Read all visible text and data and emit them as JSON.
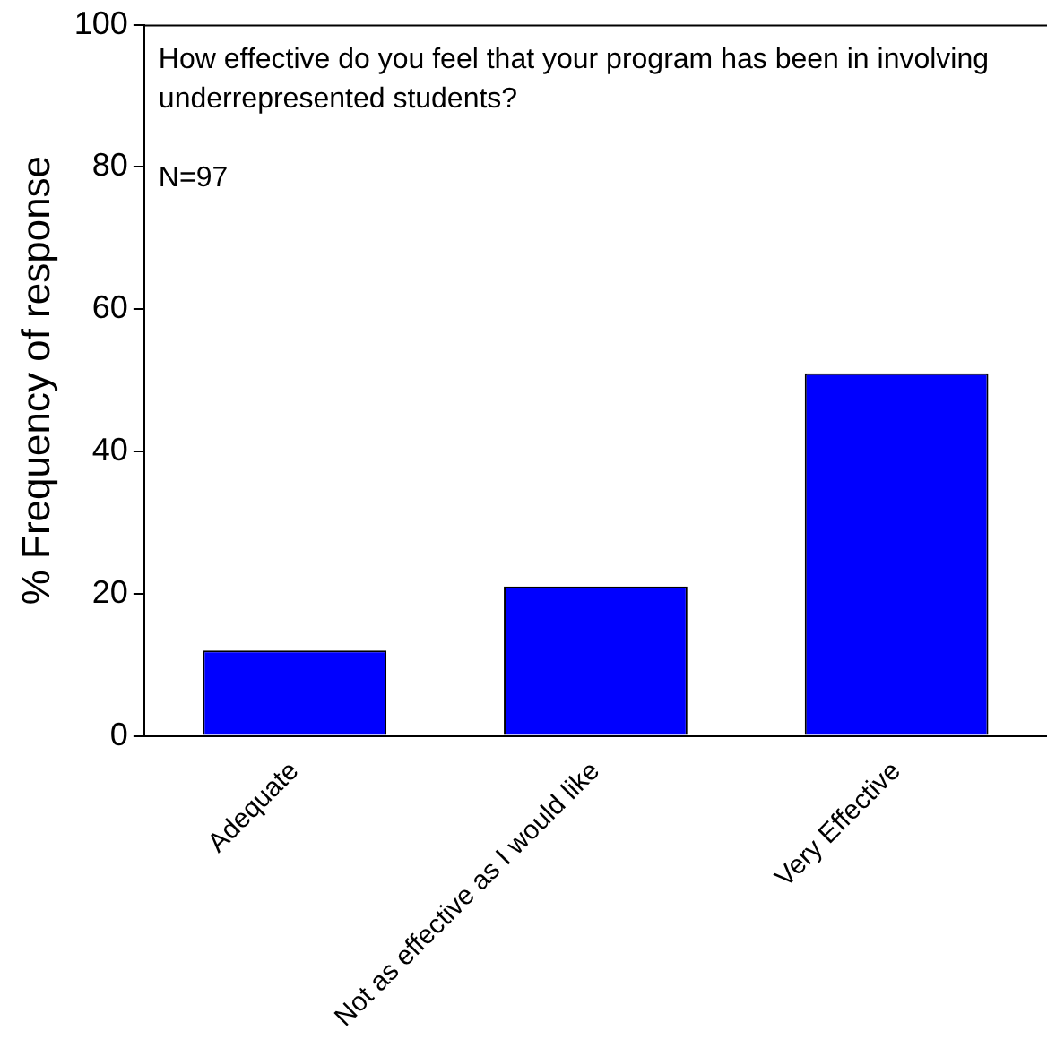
{
  "chart_data": {
    "type": "bar",
    "ylabel": "% Frequency of response",
    "categories": [
      "Adequate",
      "Not as effective as I would like",
      "Very Effective"
    ],
    "values": [
      12,
      21,
      51
    ],
    "color": "#0000ff",
    "ylim": [
      0,
      100
    ],
    "yticks": [
      0,
      20,
      40,
      60,
      80,
      100
    ],
    "grid": false,
    "legend": false,
    "annotations": [
      "How effective do you feel that your program has been in involving underrepresented students?",
      "N=97"
    ]
  }
}
